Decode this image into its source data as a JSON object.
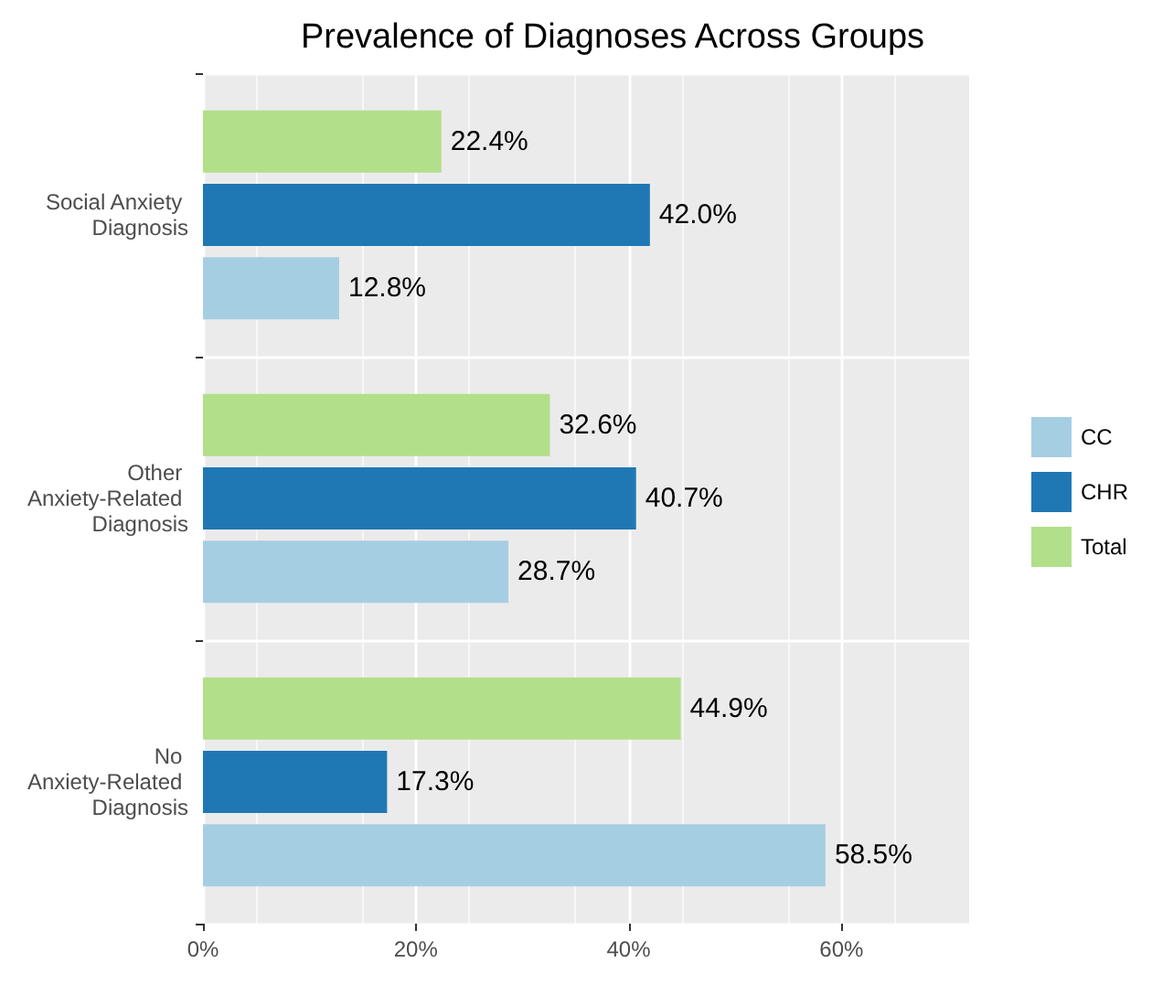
{
  "chart_data": {
    "type": "bar",
    "orientation": "horizontal",
    "title": "Prevalence of Diagnoses Across Groups",
    "categories": [
      "Social Anxiety Diagnosis",
      "Other Anxiety-Related Diagnosis",
      "No Anxiety-Related Diagnosis"
    ],
    "series": [
      {
        "name": "CC",
        "color": "#a6cee3",
        "values": [
          12.8,
          28.7,
          58.5
        ],
        "value_labels": [
          "12.8%",
          "28.7%",
          "58.5%"
        ]
      },
      {
        "name": "CHR",
        "color": "#1f78b4",
        "values": [
          42.0,
          40.7,
          17.3
        ],
        "value_labels": [
          "42.0%",
          "40.7%",
          "17.3%"
        ]
      },
      {
        "name": "Total",
        "color": "#b2df8a",
        "values": [
          22.4,
          32.6,
          44.9
        ],
        "value_labels": [
          "22.4%",
          "32.6%",
          "44.9%"
        ]
      }
    ],
    "xlim": [
      0,
      72
    ],
    "xticks": [
      {
        "value": 0,
        "label": "0%"
      },
      {
        "value": 20,
        "label": "20%"
      },
      {
        "value": 40,
        "label": "40%"
      },
      {
        "value": 60,
        "label": "60%"
      }
    ],
    "grid": true,
    "legend": "right"
  }
}
